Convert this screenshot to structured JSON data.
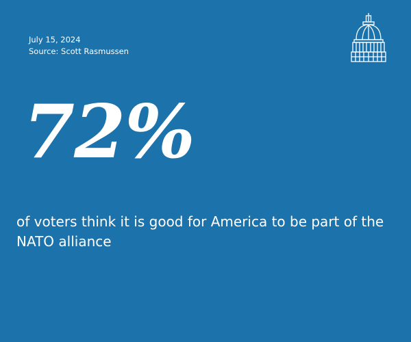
{
  "meta": {
    "date": "July 15, 2024",
    "source": "Source: Scott Rasmussen"
  },
  "stat": {
    "value": "72%",
    "description": "of voters think it is good for America to be part of the NATO alliance"
  },
  "logo": {
    "icon": "capitol-dome-icon"
  },
  "colors": {
    "background": "#1c72ab",
    "text": "#ffffff"
  }
}
